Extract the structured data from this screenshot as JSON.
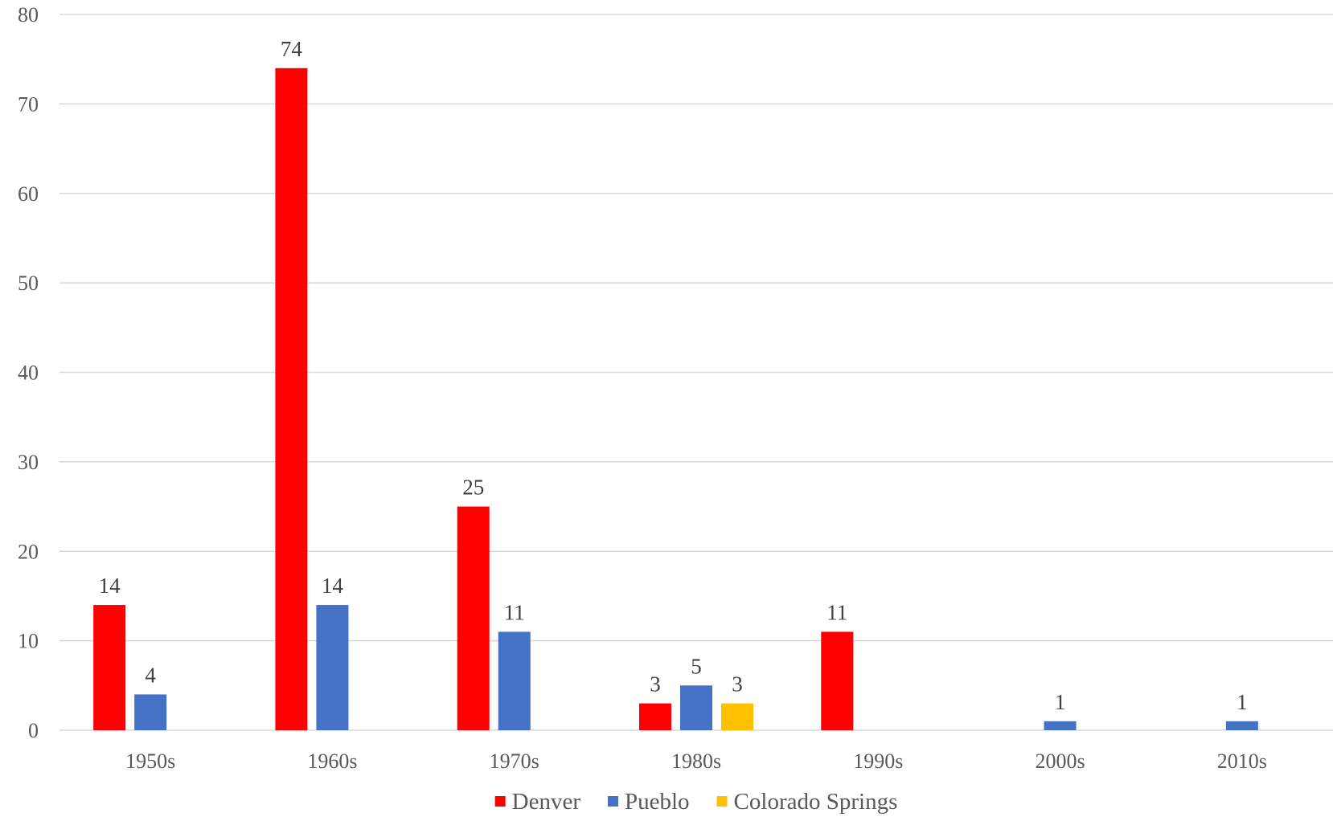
{
  "chart_data": {
    "type": "bar",
    "title": "",
    "xlabel": "",
    "ylabel": "",
    "categories": [
      "1950s",
      "1960s",
      "1970s",
      "1980s",
      "1990s",
      "2000s",
      "2010s"
    ],
    "series": [
      {
        "name": "Denver",
        "color": "#ff0000",
        "values": [
          14,
          74,
          25,
          3,
          11,
          null,
          null
        ]
      },
      {
        "name": "Pueblo",
        "color": "#4472c4",
        "values": [
          4,
          14,
          11,
          5,
          null,
          1,
          1
        ]
      },
      {
        "name": "Colorado Springs",
        "color": "#ffc000",
        "values": [
          null,
          null,
          null,
          3,
          null,
          null,
          null
        ]
      }
    ],
    "ylim": [
      0,
      80
    ],
    "yticks": [
      0,
      10,
      20,
      30,
      40,
      50,
      60,
      70,
      80
    ],
    "grid": true,
    "legend": "bottom",
    "data_labels": true
  }
}
